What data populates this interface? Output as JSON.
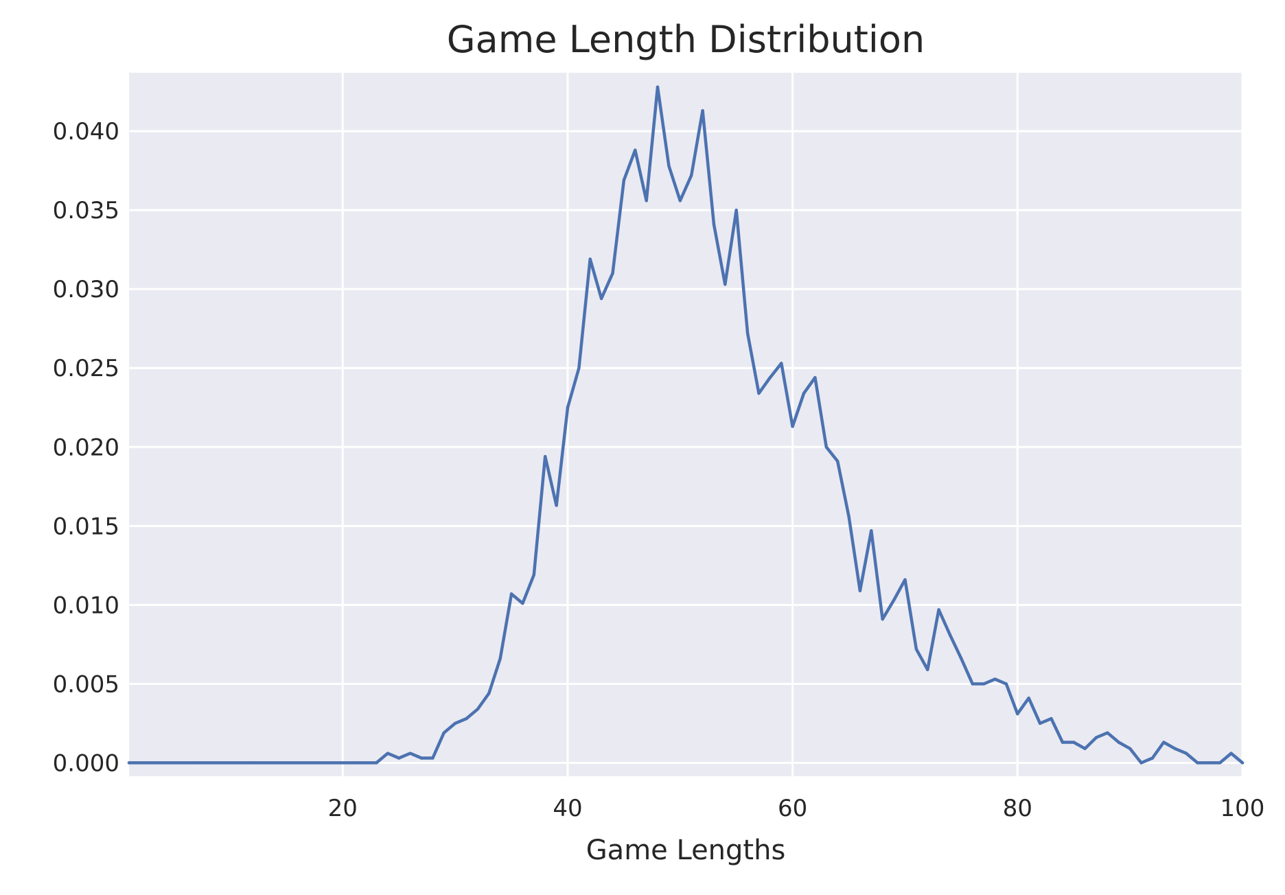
{
  "chart_data": {
    "type": "line",
    "title": "Game Length Distribution",
    "xlabel": "Game Lengths",
    "ylabel": "",
    "xlim": [
      1,
      100
    ],
    "ylim": [
      -0.00085,
      0.0437
    ],
    "x_ticks": [
      20,
      40,
      60,
      80,
      100
    ],
    "x_tick_labels": [
      "20",
      "40",
      "60",
      "80",
      "100"
    ],
    "y_ticks": [
      0.0,
      0.005,
      0.01,
      0.015,
      0.02,
      0.025,
      0.03,
      0.035,
      0.04
    ],
    "y_tick_labels": [
      "0.000",
      "0.005",
      "0.010",
      "0.015",
      "0.020",
      "0.025",
      "0.030",
      "0.035",
      "0.040"
    ],
    "grid": true,
    "legend": false,
    "colors": {
      "background": "#eaeaf2",
      "grid": "#ffffff",
      "line": "#4c72b0",
      "text": "#262626"
    },
    "series": [
      {
        "x": [
          1,
          2,
          3,
          4,
          5,
          6,
          7,
          8,
          9,
          10,
          11,
          12,
          13,
          14,
          15,
          16,
          17,
          18,
          19,
          20,
          21,
          22,
          23,
          24,
          25,
          26,
          27,
          28,
          29,
          30,
          31,
          32,
          33,
          34,
          35,
          36,
          37,
          38,
          39,
          40,
          41,
          42,
          43,
          44,
          45,
          46,
          47,
          48,
          49,
          50,
          51,
          52,
          53,
          54,
          55,
          56,
          57,
          58,
          59,
          60,
          61,
          62,
          63,
          64,
          65,
          66,
          67,
          68,
          69,
          70,
          71,
          72,
          73,
          74,
          75,
          76,
          77,
          78,
          79,
          80,
          81,
          82,
          83,
          84,
          85,
          86,
          87,
          88,
          89,
          90,
          91,
          92,
          93,
          94,
          95,
          96,
          97,
          98,
          99,
          100
        ],
        "values": [
          0,
          0,
          0,
          0,
          0,
          0,
          0,
          0,
          0,
          0,
          0,
          0,
          0,
          0,
          0,
          0,
          0,
          0,
          0,
          0,
          0,
          0,
          0,
          0.0006,
          0.0003,
          0.0006,
          0.0003,
          0.0003,
          0.0019,
          0.0025,
          0.0028,
          0.0034,
          0.0044,
          0.0066,
          0.0107,
          0.0101,
          0.0119,
          0.0194,
          0.0163,
          0.0225,
          0.025,
          0.0319,
          0.0294,
          0.031,
          0.0369,
          0.0388,
          0.0356,
          0.0428,
          0.0378,
          0.0356,
          0.0372,
          0.0413,
          0.0341,
          0.0303,
          0.035,
          0.0272,
          0.0234,
          0.0244,
          0.0253,
          0.0213,
          0.0234,
          0.0244,
          0.02,
          0.0191,
          0.0156,
          0.0109,
          0.0147,
          0.0091,
          0.0103,
          0.0116,
          0.0072,
          0.0059,
          0.0097,
          0.0081,
          0.0066,
          0.005,
          0.005,
          0.0053,
          0.005,
          0.0031,
          0.0041,
          0.0025,
          0.0028,
          0.0013,
          0.0013,
          0.0009,
          0.0016,
          0.0019,
          0.0013,
          0.0009,
          0.0,
          0.0003,
          0.0013,
          0.0009,
          0.0006,
          0.0,
          0.0,
          0.0,
          0.0006,
          0.0
        ]
      }
    ]
  }
}
